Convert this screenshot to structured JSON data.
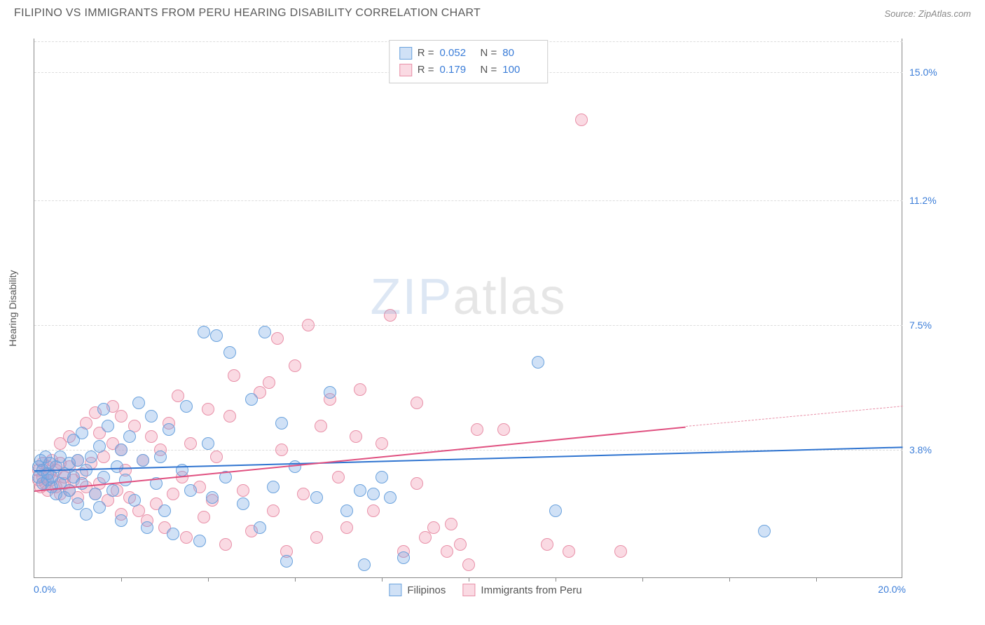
{
  "title": "FILIPINO VS IMMIGRANTS FROM PERU HEARING DISABILITY CORRELATION CHART",
  "source": "Source: ZipAtlas.com",
  "watermark": {
    "a": "ZIP",
    "b": "atlas"
  },
  "axes": {
    "y_label": "Hearing Disability",
    "x_min_label": "0.0%",
    "x_max_label": "20.0%",
    "x_domain": [
      0,
      20
    ],
    "y_domain": [
      0,
      16
    ],
    "y_ticks": [
      {
        "v": 3.8,
        "label": "3.8%"
      },
      {
        "v": 7.5,
        "label": "7.5%"
      },
      {
        "v": 11.2,
        "label": "11.2%"
      },
      {
        "v": 15.0,
        "label": "15.0%"
      }
    ],
    "x_tick_positions": [
      2.0,
      4.0,
      6.0,
      8.0,
      10.0,
      12.0,
      14.0,
      16.0,
      18.0
    ],
    "grid_color": "#dddddd",
    "axis_color": "#888888",
    "tick_label_color": "#3b7dd8"
  },
  "series": {
    "filipinos": {
      "label": "Filipinos",
      "fill": "rgba(120,170,230,0.35)",
      "stroke": "#6aa2dd",
      "line_color": "#2f74d0",
      "marker_r": 9,
      "R": "0.052",
      "N": "80",
      "trend": {
        "x1": 0,
        "y1": 3.2,
        "x2": 20,
        "y2": 3.9,
        "dash_from_x": 20
      },
      "points": [
        [
          0.1,
          3.0
        ],
        [
          0.1,
          3.3
        ],
        [
          0.15,
          3.5
        ],
        [
          0.2,
          2.8
        ],
        [
          0.2,
          3.2
        ],
        [
          0.25,
          3.6
        ],
        [
          0.3,
          2.9
        ],
        [
          0.3,
          3.1
        ],
        [
          0.35,
          3.4
        ],
        [
          0.4,
          2.7
        ],
        [
          0.4,
          3.0
        ],
        [
          0.5,
          3.3
        ],
        [
          0.5,
          2.5
        ],
        [
          0.6,
          3.6
        ],
        [
          0.6,
          2.8
        ],
        [
          0.7,
          3.1
        ],
        [
          0.7,
          2.4
        ],
        [
          0.8,
          3.4
        ],
        [
          0.8,
          2.6
        ],
        [
          0.9,
          3.0
        ],
        [
          1.0,
          2.2
        ],
        [
          1.0,
          3.5
        ],
        [
          1.1,
          2.8
        ],
        [
          1.2,
          3.2
        ],
        [
          1.2,
          1.9
        ],
        [
          1.3,
          3.6
        ],
        [
          1.4,
          2.5
        ],
        [
          1.5,
          3.9
        ],
        [
          1.5,
          2.1
        ],
        [
          1.6,
          3.0
        ],
        [
          1.7,
          4.5
        ],
        [
          1.8,
          2.6
        ],
        [
          1.9,
          3.3
        ],
        [
          2.0,
          1.7
        ],
        [
          2.0,
          3.8
        ],
        [
          2.1,
          2.9
        ],
        [
          2.2,
          4.2
        ],
        [
          2.3,
          2.3
        ],
        [
          2.5,
          3.5
        ],
        [
          2.6,
          1.5
        ],
        [
          2.7,
          4.8
        ],
        [
          2.8,
          2.8
        ],
        [
          2.9,
          3.6
        ],
        [
          3.0,
          2.0
        ],
        [
          3.1,
          4.4
        ],
        [
          3.2,
          1.3
        ],
        [
          3.4,
          3.2
        ],
        [
          3.5,
          5.1
        ],
        [
          3.6,
          2.6
        ],
        [
          3.8,
          1.1
        ],
        [
          3.9,
          7.3
        ],
        [
          4.0,
          4.0
        ],
        [
          4.1,
          2.4
        ],
        [
          4.2,
          7.2
        ],
        [
          4.4,
          3.0
        ],
        [
          4.5,
          6.7
        ],
        [
          4.8,
          2.2
        ],
        [
          5.0,
          5.3
        ],
        [
          5.2,
          1.5
        ],
        [
          5.3,
          7.3
        ],
        [
          5.5,
          2.7
        ],
        [
          5.7,
          4.6
        ],
        [
          5.8,
          0.5
        ],
        [
          6.0,
          3.3
        ],
        [
          6.5,
          2.4
        ],
        [
          6.8,
          5.5
        ],
        [
          7.2,
          2.0
        ],
        [
          7.5,
          2.6
        ],
        [
          7.6,
          0.4
        ],
        [
          7.8,
          2.5
        ],
        [
          8.0,
          3.0
        ],
        [
          8.2,
          2.4
        ],
        [
          8.5,
          0.6
        ],
        [
          11.6,
          6.4
        ],
        [
          12.0,
          2.0
        ],
        [
          16.8,
          1.4
        ],
        [
          2.4,
          5.2
        ],
        [
          1.6,
          5.0
        ],
        [
          0.9,
          4.1
        ],
        [
          1.1,
          4.3
        ]
      ]
    },
    "peru": {
      "label": "Immigrants from Peru",
      "fill": "rgba(240,150,175,0.35)",
      "stroke": "#e890a8",
      "line_color": "#e05080",
      "marker_r": 9,
      "R": "0.179",
      "N": "100",
      "trend": {
        "x1": 0,
        "y1": 2.6,
        "x2": 15,
        "y2": 4.5,
        "dash_from_x": 15,
        "dash_x2": 20,
        "dash_y2": 5.1
      },
      "points": [
        [
          0.1,
          2.9
        ],
        [
          0.1,
          3.2
        ],
        [
          0.15,
          2.7
        ],
        [
          0.2,
          3.4
        ],
        [
          0.2,
          3.0
        ],
        [
          0.25,
          2.8
        ],
        [
          0.3,
          3.3
        ],
        [
          0.3,
          2.6
        ],
        [
          0.35,
          3.1
        ],
        [
          0.4,
          2.9
        ],
        [
          0.4,
          3.5
        ],
        [
          0.5,
          2.7
        ],
        [
          0.5,
          3.2
        ],
        [
          0.6,
          2.5
        ],
        [
          0.6,
          3.4
        ],
        [
          0.7,
          2.8
        ],
        [
          0.7,
          3.0
        ],
        [
          0.8,
          2.6
        ],
        [
          0.8,
          3.3
        ],
        [
          0.9,
          2.9
        ],
        [
          1.0,
          3.5
        ],
        [
          1.0,
          2.4
        ],
        [
          1.1,
          3.1
        ],
        [
          1.2,
          2.7
        ],
        [
          1.3,
          3.4
        ],
        [
          1.4,
          2.5
        ],
        [
          1.5,
          4.3
        ],
        [
          1.5,
          2.8
        ],
        [
          1.6,
          3.6
        ],
        [
          1.7,
          2.3
        ],
        [
          1.8,
          4.0
        ],
        [
          1.9,
          2.6
        ],
        [
          2.0,
          3.8
        ],
        [
          2.0,
          1.9
        ],
        [
          2.1,
          3.2
        ],
        [
          2.2,
          2.4
        ],
        [
          2.3,
          4.5
        ],
        [
          2.4,
          2.0
        ],
        [
          2.5,
          3.5
        ],
        [
          2.6,
          1.7
        ],
        [
          2.7,
          4.2
        ],
        [
          2.8,
          2.2
        ],
        [
          2.9,
          3.8
        ],
        [
          3.0,
          1.5
        ],
        [
          3.1,
          4.6
        ],
        [
          3.2,
          2.5
        ],
        [
          3.4,
          3.0
        ],
        [
          3.5,
          1.2
        ],
        [
          3.6,
          4.0
        ],
        [
          3.8,
          2.7
        ],
        [
          3.9,
          1.8
        ],
        [
          4.0,
          5.0
        ],
        [
          4.1,
          2.3
        ],
        [
          4.2,
          3.6
        ],
        [
          4.4,
          1.0
        ],
        [
          4.5,
          4.8
        ],
        [
          4.8,
          2.6
        ],
        [
          5.0,
          1.4
        ],
        [
          5.2,
          5.5
        ],
        [
          5.5,
          2.0
        ],
        [
          5.6,
          7.1
        ],
        [
          5.7,
          3.8
        ],
        [
          5.8,
          0.8
        ],
        [
          6.0,
          6.3
        ],
        [
          6.2,
          2.5
        ],
        [
          6.3,
          7.5
        ],
        [
          6.5,
          1.2
        ],
        [
          6.8,
          5.3
        ],
        [
          7.0,
          3.0
        ],
        [
          7.2,
          1.5
        ],
        [
          7.5,
          5.6
        ],
        [
          7.8,
          2.0
        ],
        [
          8.0,
          4.0
        ],
        [
          8.2,
          7.8
        ],
        [
          8.5,
          0.8
        ],
        [
          8.8,
          2.8
        ],
        [
          9.0,
          1.2
        ],
        [
          9.2,
          1.5
        ],
        [
          9.5,
          0.8
        ],
        [
          9.6,
          1.6
        ],
        [
          9.8,
          1.0
        ],
        [
          10.0,
          0.4
        ],
        [
          10.2,
          4.4
        ],
        [
          10.8,
          4.4
        ],
        [
          11.8,
          1.0
        ],
        [
          12.3,
          0.8
        ],
        [
          12.6,
          13.6
        ],
        [
          13.5,
          0.8
        ],
        [
          2.0,
          4.8
        ],
        [
          1.2,
          4.6
        ],
        [
          0.6,
          4.0
        ],
        [
          0.8,
          4.2
        ],
        [
          1.4,
          4.9
        ],
        [
          1.8,
          5.1
        ],
        [
          3.3,
          5.4
        ],
        [
          4.6,
          6.0
        ],
        [
          5.4,
          5.8
        ],
        [
          6.6,
          4.5
        ],
        [
          7.4,
          4.2
        ],
        [
          8.8,
          5.2
        ]
      ]
    }
  },
  "legend_top_labels": {
    "R": "R =",
    "N": "N ="
  },
  "background_color": "#ffffff"
}
